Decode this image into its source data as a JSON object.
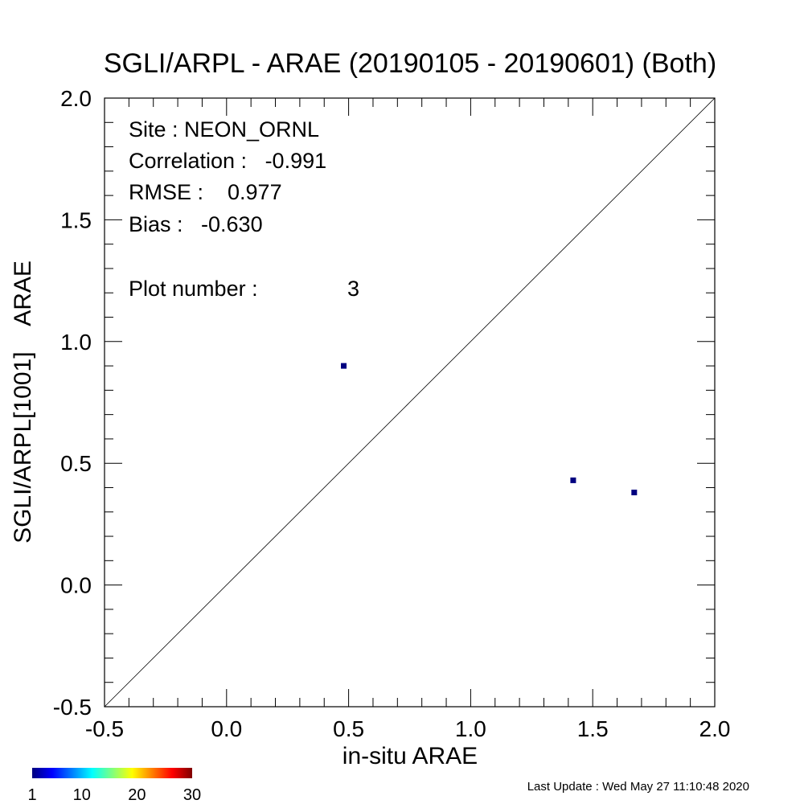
{
  "chart_data": {
    "type": "scatter",
    "title": "SGLI/ARPL - ARAE (20190105 - 20190601) (Both)",
    "xlabel": "in-situ ARAE",
    "ylabel": "SGLI/ARPL[1001]    ARAE",
    "xlim": [
      -0.5,
      2.0
    ],
    "ylim": [
      -0.5,
      2.0
    ],
    "x_ticks": [
      "-0.5",
      "0.0",
      "0.5",
      "1.0",
      "1.5",
      "2.0"
    ],
    "y_ticks": [
      "-0.5",
      "0.0",
      "0.5",
      "1.0",
      "1.5",
      "2.0"
    ],
    "reference_line": "1:1",
    "grid": false,
    "point_color": "#000080",
    "points": [
      {
        "x": 0.48,
        "y": 0.9
      },
      {
        "x": 1.42,
        "y": 0.43
      },
      {
        "x": 1.67,
        "y": 0.38
      }
    ]
  },
  "stats": {
    "site": "Site : NEON_ORNL",
    "correlation": "Correlation :   -0.991",
    "rmse": "RMSE :    0.977",
    "bias": "Bias :   -0.630",
    "plot_number_label": "Plot number :",
    "plot_number_value": "3"
  },
  "colorbar": {
    "ticks": [
      "1",
      "10",
      "20",
      "30"
    ],
    "colors": [
      "#00007f",
      "#0000ff",
      "#007fff",
      "#00ffff",
      "#7fff7f",
      "#ffff00",
      "#ff7f00",
      "#ff0000",
      "#7f0000"
    ]
  },
  "footer": "Last Update : Wed May 27 11:10:48 2020"
}
